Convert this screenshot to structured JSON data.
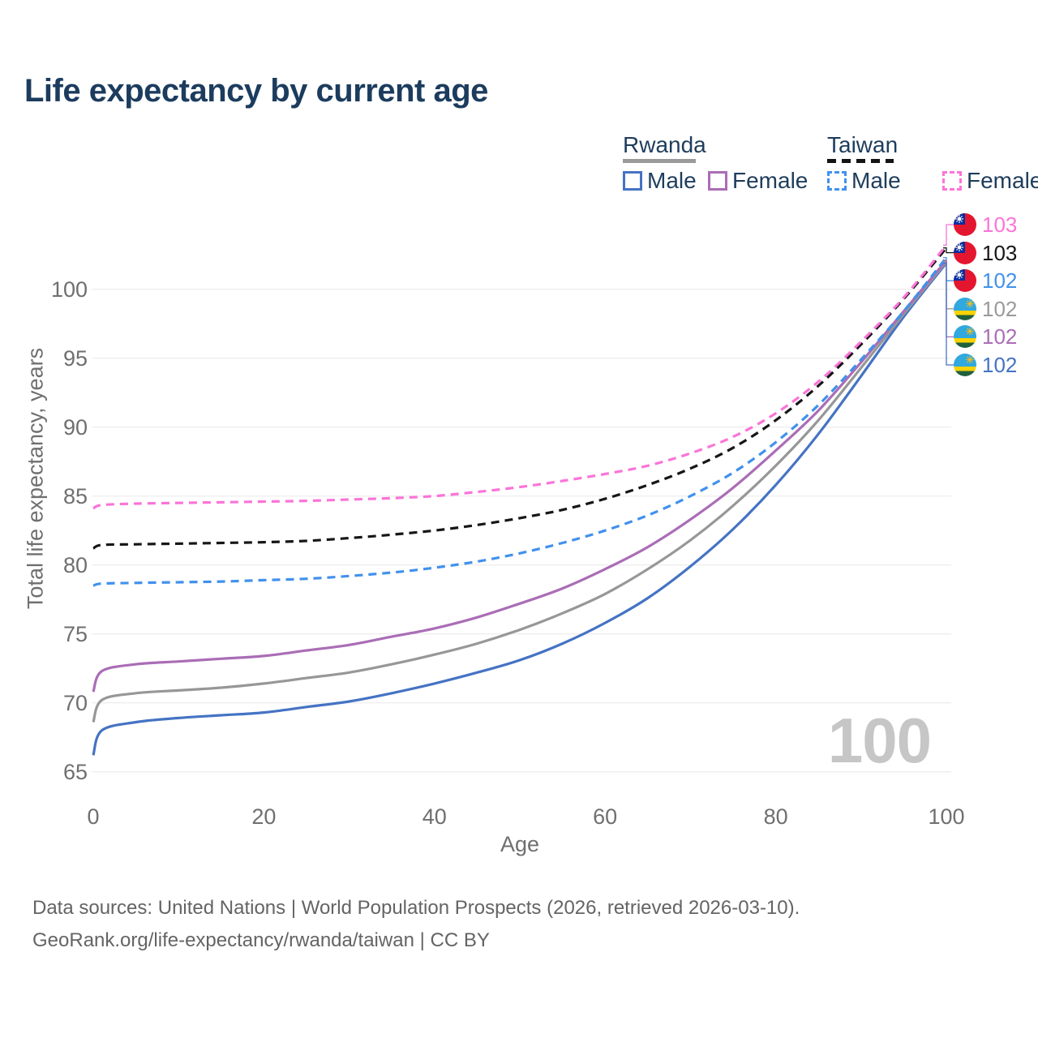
{
  "title": "Life expectancy by current age",
  "legend": {
    "groups": [
      {
        "label": "Rwanda",
        "underline_style": "solid",
        "underline_color": "#9A9A9A",
        "items": [
          {
            "label": "Male",
            "color": "#4573C4",
            "dash": false
          },
          {
            "label": "Female",
            "color": "#AA6DB6",
            "dash": false
          }
        ]
      },
      {
        "label": "Taiwan",
        "underline_style": "dashed",
        "underline_color": "#141414",
        "items": [
          {
            "label": "Male",
            "color": "#4191EC",
            "dash": true
          },
          {
            "label": "Female",
            "color": "#FB74D8",
            "dash": true
          }
        ]
      }
    ]
  },
  "chart_data": {
    "type": "line",
    "title": "Life expectancy by current age",
    "xlabel": "Age",
    "ylabel": "Total life expectancy, years",
    "x_ticks": [
      0,
      20,
      40,
      60,
      80,
      100
    ],
    "y_ticks": [
      65,
      70,
      75,
      80,
      85,
      90,
      95,
      100
    ],
    "xlim": [
      0,
      100
    ],
    "ylim": [
      65,
      103.5
    ],
    "grid": true,
    "ages": [
      0,
      1,
      5,
      10,
      15,
      20,
      25,
      30,
      35,
      40,
      45,
      50,
      55,
      60,
      65,
      70,
      75,
      80,
      85,
      90,
      95,
      100
    ],
    "series": [
      {
        "name": "rwanda_male",
        "country": "Rwanda",
        "sex": "Male",
        "color": "#4573C4",
        "dash": false,
        "values": [
          66.2,
          68.0,
          68.6,
          68.9,
          69.1,
          69.3,
          69.7,
          70.1,
          70.7,
          71.4,
          72.2,
          73.1,
          74.3,
          75.8,
          77.6,
          79.9,
          82.6,
          85.8,
          89.5,
          93.7,
          98.0,
          101.9
        ]
      },
      {
        "name": "rwanda_total",
        "country": "Rwanda",
        "sex": "Both",
        "color": "#979797",
        "dash": false,
        "values": [
          68.6,
          70.2,
          70.7,
          70.9,
          71.1,
          71.4,
          71.8,
          72.2,
          72.8,
          73.5,
          74.3,
          75.3,
          76.5,
          77.9,
          79.7,
          81.8,
          84.3,
          87.2,
          90.5,
          94.3,
          98.2,
          102.0
        ]
      },
      {
        "name": "rwanda_female",
        "country": "Rwanda",
        "sex": "Female",
        "color": "#AA6DB6",
        "dash": false,
        "values": [
          70.8,
          72.3,
          72.8,
          73.0,
          73.2,
          73.4,
          73.8,
          74.2,
          74.8,
          75.4,
          76.2,
          77.2,
          78.3,
          79.7,
          81.3,
          83.3,
          85.6,
          88.3,
          91.2,
          94.7,
          98.4,
          102.1
        ]
      },
      {
        "name": "taiwan_male",
        "country": "Taiwan",
        "sex": "Male",
        "color": "#4191EC",
        "dash": true,
        "values": [
          78.5,
          78.65,
          78.7,
          78.75,
          78.8,
          78.9,
          79.0,
          79.2,
          79.45,
          79.8,
          80.25,
          80.85,
          81.6,
          82.5,
          83.6,
          85.0,
          86.7,
          88.9,
          91.6,
          94.9,
          98.4,
          102.3
        ]
      },
      {
        "name": "taiwan_total",
        "country": "Taiwan",
        "sex": "Both",
        "color": "#161616",
        "dash": true,
        "values": [
          81.2,
          81.45,
          81.5,
          81.55,
          81.6,
          81.65,
          81.75,
          81.95,
          82.2,
          82.5,
          82.9,
          83.4,
          84.0,
          84.8,
          85.8,
          87.0,
          88.5,
          90.5,
          93.0,
          96.0,
          99.3,
          103.0
        ]
      },
      {
        "name": "taiwan_female",
        "country": "Taiwan",
        "sex": "Female",
        "color": "#FB74D8",
        "dash": true,
        "values": [
          84.1,
          84.35,
          84.45,
          84.5,
          84.55,
          84.6,
          84.65,
          84.75,
          84.85,
          85.0,
          85.3,
          85.65,
          86.1,
          86.6,
          87.2,
          88.1,
          89.3,
          91.0,
          93.3,
          96.2,
          99.4,
          103.2
        ]
      }
    ],
    "end_labels": [
      {
        "value": "103",
        "flag": "taiwan",
        "color": "#FB74D8",
        "series": "taiwan_female"
      },
      {
        "value": "103",
        "flag": "taiwan",
        "color": "#161616",
        "series": "taiwan_total"
      },
      {
        "value": "102",
        "flag": "taiwan",
        "color": "#4191EC",
        "series": "taiwan_male"
      },
      {
        "value": "102",
        "flag": "rwanda",
        "color": "#9A9A9A",
        "series": "rwanda_total"
      },
      {
        "value": "102",
        "flag": "rwanda",
        "color": "#AA6DB6",
        "series": "rwanda_female"
      },
      {
        "value": "102",
        "flag": "rwanda",
        "color": "#4573C4",
        "series": "rwanda_male"
      }
    ],
    "watermark": "100"
  },
  "footer": {
    "line1": "Data sources: United Nations | World Population Prospects (2026, retrieved 2026-03-10).",
    "line2": "GeoRank.org/life-expectancy/rwanda/taiwan | CC BY"
  }
}
